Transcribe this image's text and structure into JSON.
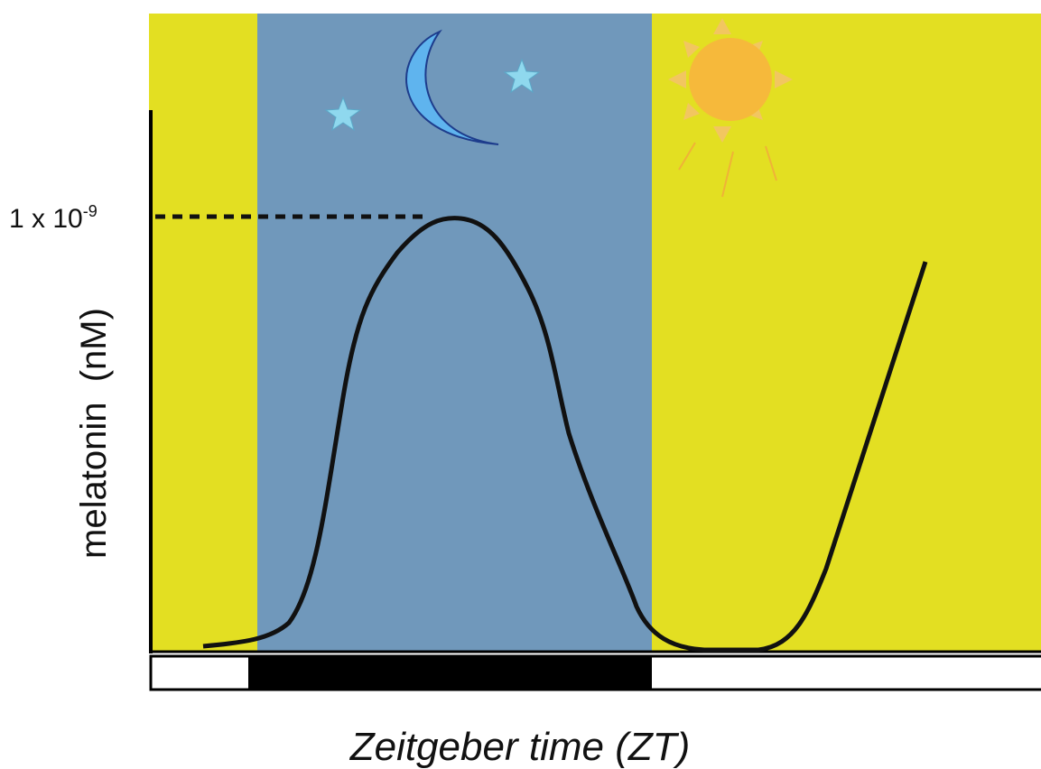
{
  "peak_label": {
    "base": "1 x 10",
    "exponent": "-9"
  },
  "y_axis_label": "melatonin  (nM)",
  "x_axis_label": "Zeitgeber time (ZT)"
}
